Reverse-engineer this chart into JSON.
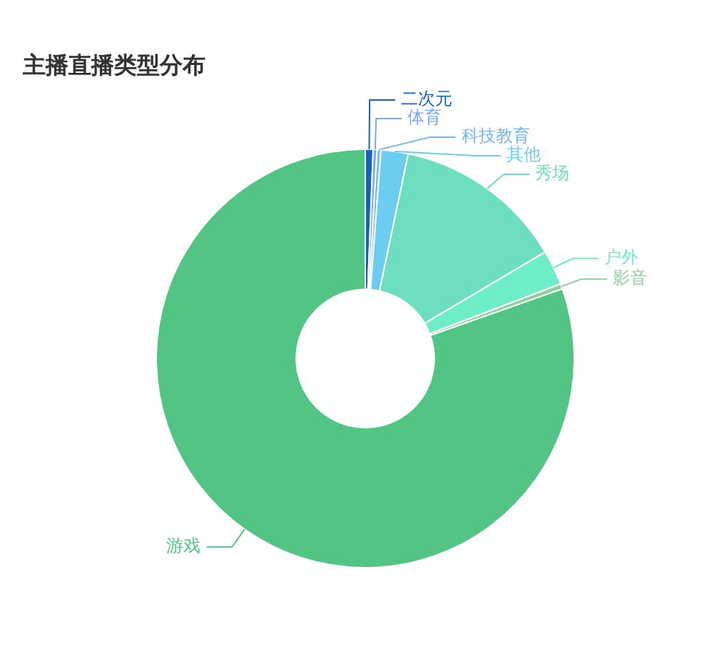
{
  "chart_data": {
    "type": "donut",
    "title": "主播直播类型分布",
    "categories": [
      "二次元",
      "体育",
      "科技教育",
      "其他",
      "秀场",
      "户外",
      "影音",
      "游戏"
    ],
    "values": [
      0.6,
      0.3,
      0.3,
      2.1,
      13.2,
      2.7,
      0.4,
      80.4
    ],
    "colors": [
      "#1560c6",
      "#7aa9f0",
      "#73b9f2",
      "#6dcdf0",
      "#6ddfc0",
      "#6deec6",
      "#8fcf9f",
      "#52c585"
    ]
  }
}
